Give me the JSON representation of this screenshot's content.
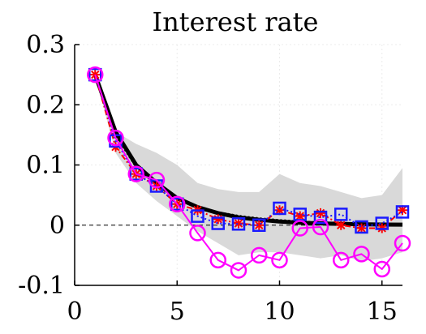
{
  "chart_data": {
    "type": "line",
    "title": "Interest rate",
    "xlabel": "",
    "ylabel": "",
    "xlim": [
      0,
      16
    ],
    "ylim": [
      -0.1,
      0.3
    ],
    "xticks": [
      0,
      5,
      10,
      15
    ],
    "yticks": [
      0.3,
      0.2,
      0.1,
      0,
      -0.1
    ],
    "xtick_labels": [
      "0",
      "5",
      "10",
      "15"
    ],
    "ytick_labels": [
      "0.3",
      "0.2",
      "0.1",
      "0",
      "-0.1"
    ],
    "grid": true,
    "zero_line": true,
    "x": [
      1,
      2,
      3,
      4,
      5,
      6,
      7,
      8,
      9,
      10,
      11,
      12,
      13,
      14,
      15,
      16
    ],
    "band": {
      "color": "#d9d9d9",
      "lower": [
        0.25,
        0.12,
        0.07,
        0.04,
        0.015,
        -0.01,
        -0.03,
        -0.05,
        -0.045,
        -0.045,
        -0.05,
        -0.055,
        -0.05,
        -0.06,
        -0.055,
        -0.045
      ],
      "upper": [
        0.25,
        0.155,
        0.135,
        0.12,
        0.1,
        0.07,
        0.06,
        0.055,
        0.055,
        0.085,
        0.07,
        0.065,
        0.055,
        0.045,
        0.05,
        0.095
      ]
    },
    "series": [
      {
        "style": "solid-thick",
        "color": "#000000",
        "values": [
          0.25,
          0.155,
          0.1,
          0.07,
          0.045,
          0.03,
          0.02,
          0.013,
          0.009,
          0.006,
          0.004,
          0.003,
          0.002,
          0.0015,
          0.001,
          0.0008
        ]
      },
      {
        "style": "dotted-black",
        "color": "#000000",
        "values": [
          0.25,
          0.15,
          0.097,
          0.067,
          0.044,
          0.03,
          0.021,
          0.015,
          0.011,
          0.008,
          0.006,
          0.004,
          0.003,
          0.002,
          0.0015,
          0.001
        ]
      },
      {
        "style": "dashdot-red-star",
        "color": "#ff0000",
        "values": [
          0.25,
          0.13,
          0.085,
          0.065,
          0.035,
          0.025,
          0.01,
          0.003,
          0.0,
          0.025,
          0.015,
          0.02,
          0.0,
          -0.005,
          -0.005,
          0.025
        ]
      },
      {
        "style": "blue-square",
        "color": "#1a1aff",
        "values": [
          0.25,
          0.14,
          0.085,
          0.065,
          0.035,
          0.015,
          0.003,
          0.002,
          0.0,
          0.028,
          0.018,
          0.013,
          0.018,
          -0.003,
          0.003,
          0.022
        ]
      },
      {
        "style": "magenta-circle",
        "color": "#ff00ff",
        "values": [
          0.25,
          0.145,
          0.085,
          0.075,
          0.035,
          -0.013,
          -0.058,
          -0.075,
          -0.05,
          -0.058,
          -0.005,
          -0.003,
          -0.058,
          -0.048,
          -0.073,
          -0.03
        ]
      }
    ]
  }
}
